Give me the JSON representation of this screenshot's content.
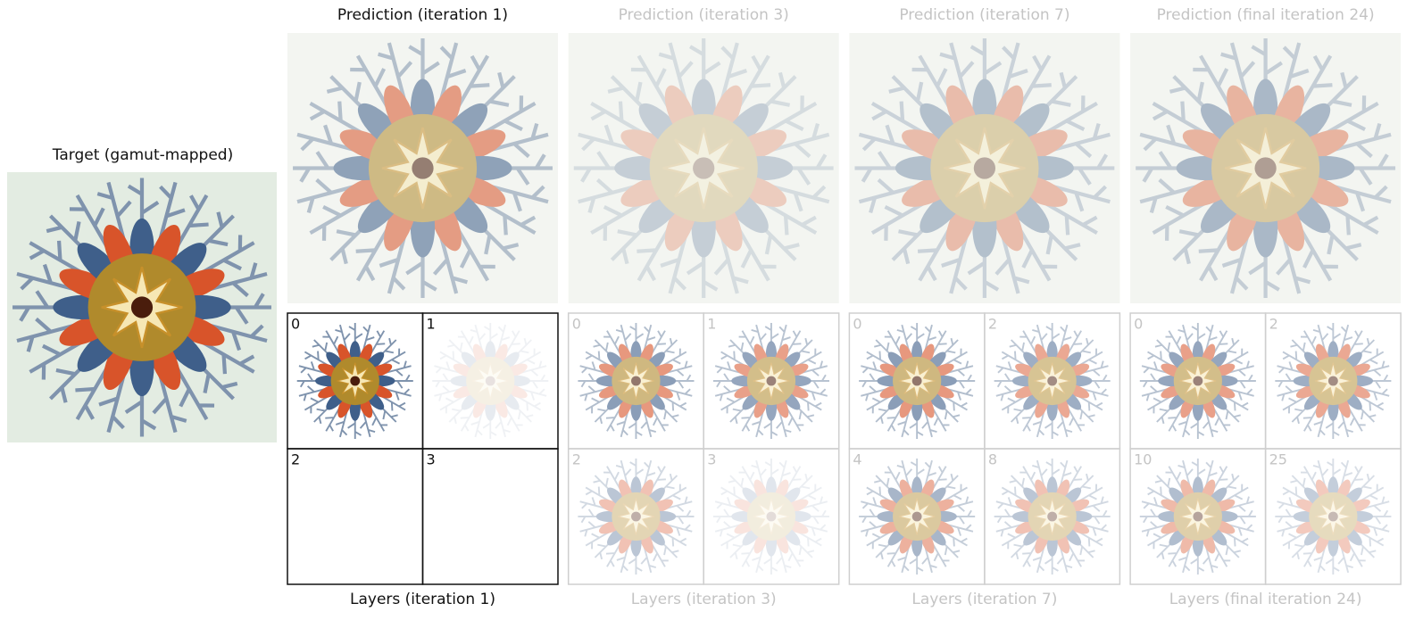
{
  "target": {
    "title": "Target (gamut-mapped)"
  },
  "columns": [
    {
      "prediction_title": "Prediction (iteration 1)",
      "layers_title": "Layers (iteration 1)",
      "layer_indices": [
        "0",
        "1",
        "2",
        "3"
      ]
    },
    {
      "prediction_title": "Prediction (iteration 3)",
      "layers_title": "Layers (iteration 3)",
      "layer_indices": [
        "0",
        "1",
        "2",
        "3"
      ]
    },
    {
      "prediction_title": "Prediction (iteration 7)",
      "layers_title": "Layers (iteration 7)",
      "layer_indices": [
        "0",
        "2",
        "4",
        "8"
      ]
    },
    {
      "prediction_title": "Prediction (final iteration 24)",
      "layers_title": "Layers (final iteration 24)",
      "layer_indices": [
        "0",
        "2",
        "10",
        "25"
      ]
    }
  ]
}
